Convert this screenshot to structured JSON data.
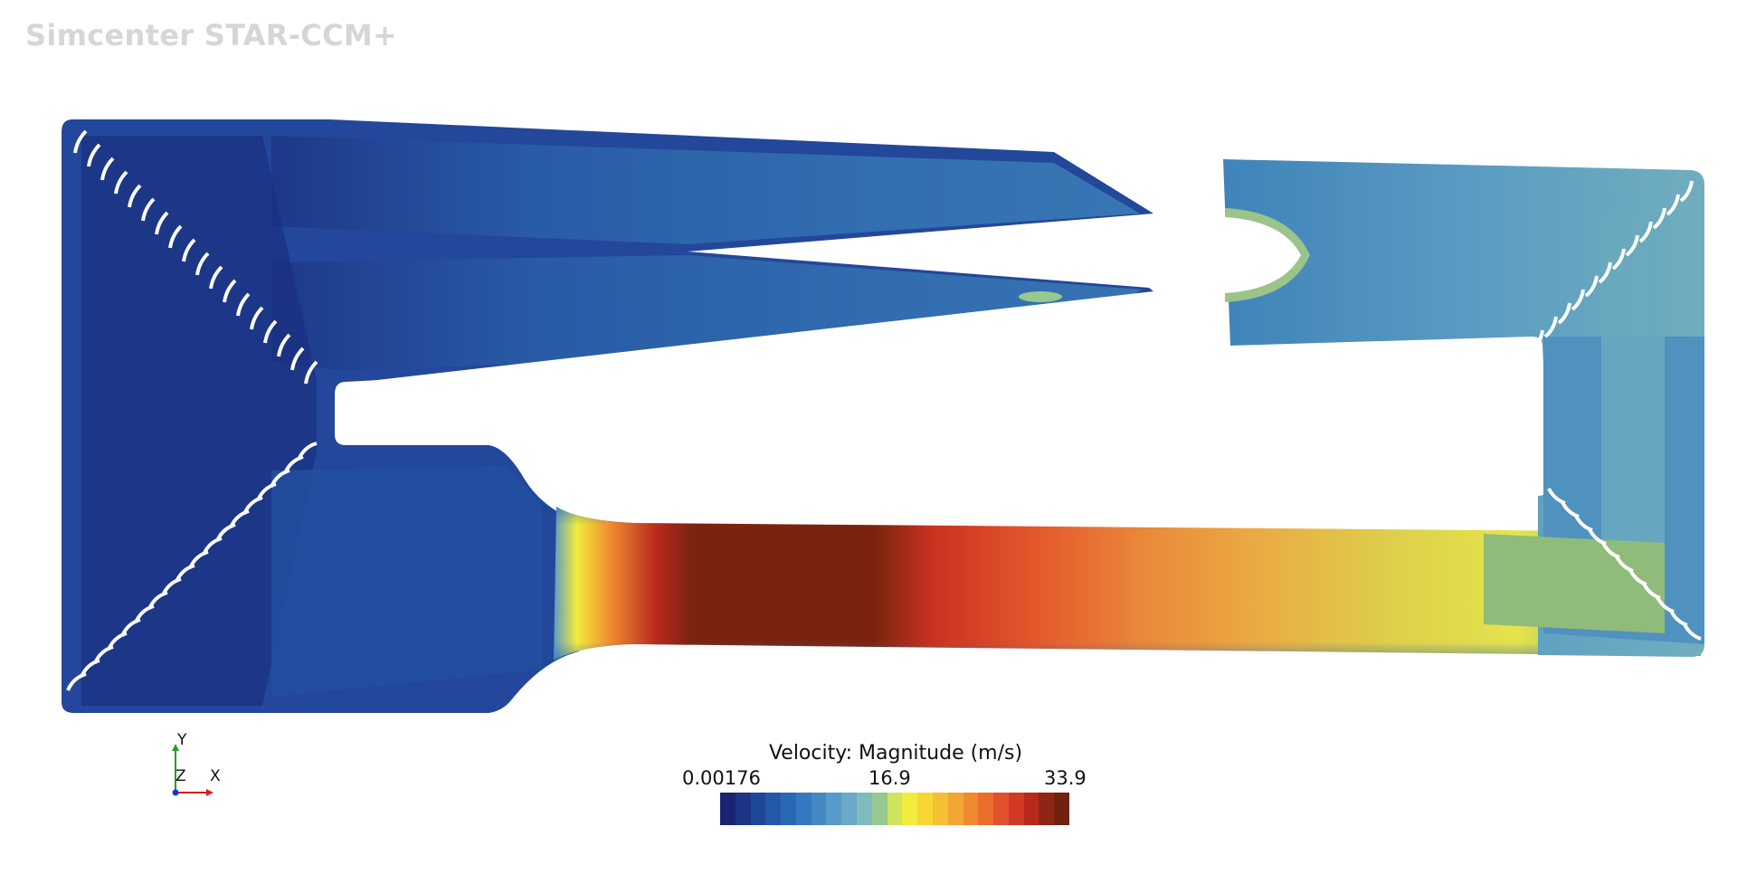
{
  "window": {
    "app_watermark": "Simcenter STAR-CCM+"
  },
  "scene": {
    "field": "Velocity: Magnitude",
    "units": "m/s"
  },
  "legend": {
    "title": "Velocity: Magnitude (m/s)",
    "min_label": "0.00176",
    "mid_label": "16.9",
    "max_label": "33.9",
    "colors": [
      "#1a2472",
      "#1c3585",
      "#1f4797",
      "#2458a8",
      "#2a68b4",
      "#3479bf",
      "#4489c4",
      "#5799c7",
      "#6aa9c7",
      "#7fbbbd",
      "#97c88e",
      "#cfe35d",
      "#f2ec3c",
      "#f7d634",
      "#f5bf33",
      "#f3a533",
      "#ef8a30",
      "#ea6d2e",
      "#e2512c",
      "#d33a26",
      "#b8281c",
      "#8f2515",
      "#6e220f"
    ]
  },
  "axes_triad": {
    "y_label": "Y",
    "z_label": "Z",
    "x_label": "X",
    "colors": {
      "x": "#d42020",
      "y": "#2a9a2a",
      "z": "#2035c8"
    }
  }
}
